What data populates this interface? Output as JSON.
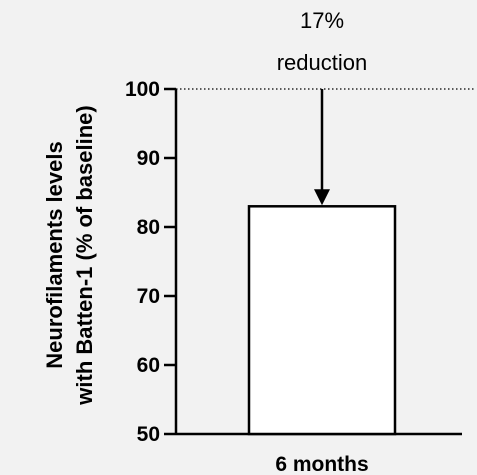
{
  "chart_data": {
    "type": "bar",
    "categories": [
      "6 months"
    ],
    "values": [
      83
    ],
    "ylabel_lines": [
      "Neurofilaments levels",
      "with Batten-1 (% of baseline)"
    ],
    "ylim": [
      50,
      100
    ],
    "yticks": [
      50,
      60,
      70,
      80,
      90,
      100
    ],
    "reference_line": {
      "value": 100,
      "style": "dotted"
    },
    "annotation": {
      "lines": [
        "17%",
        "reduction"
      ],
      "arrow_from": 100,
      "arrow_to": 83
    },
    "colors": {
      "bar_fill": "#ffffff",
      "bar_stroke": "#000000",
      "background": "#f2f2f2"
    }
  }
}
